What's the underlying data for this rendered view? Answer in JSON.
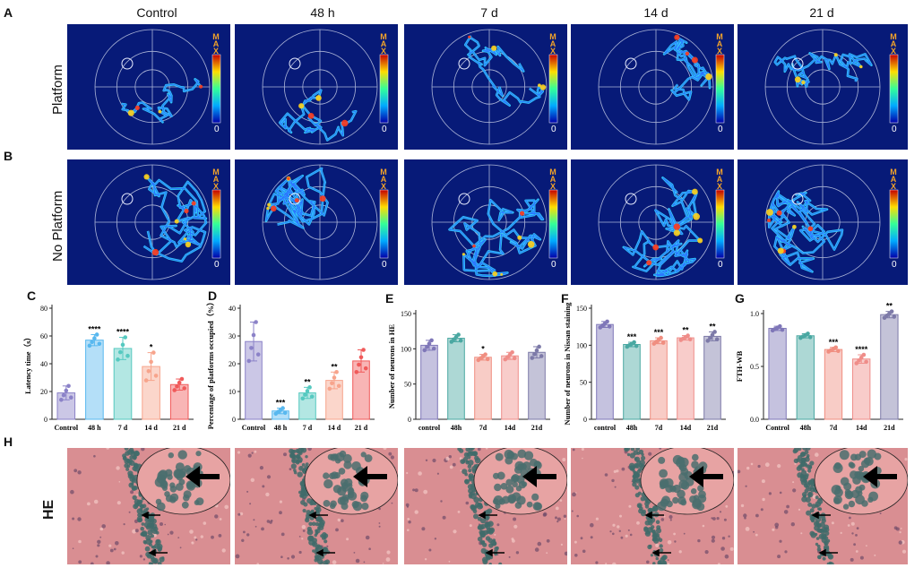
{
  "panel_letters": {
    "a": "A",
    "b": "B",
    "c": "C",
    "d": "D",
    "e": "E",
    "f": "F",
    "g": "G",
    "h": "H"
  },
  "columns": [
    "Control",
    "48 h",
    "7 d",
    "14 d",
    "21 d"
  ],
  "rows": {
    "platform": "Platform",
    "no_platform": "No Platform"
  },
  "colorbar": {
    "max": "MAX",
    "zero": "0"
  },
  "he_label": "HE",
  "colors": {
    "maze_bg": "#071a78",
    "tissue": "#d98e92",
    "cells": "#3f6b6a"
  },
  "chart_data": [
    {
      "id": "C",
      "type": "bar",
      "ylabel": "Latency time（s）",
      "ylim": [
        0,
        80
      ],
      "yticks": [
        0,
        20,
        40,
        60,
        80
      ],
      "categories": [
        "Control",
        "48 h",
        "7 d",
        "14 d",
        "21 d"
      ],
      "values": [
        19,
        57,
        51,
        38,
        25
      ],
      "errors": [
        5,
        4,
        8,
        10,
        4
      ],
      "significance": [
        "",
        "****",
        "****",
        "*",
        ""
      ],
      "colors": [
        "#8b82c8",
        "#58b8ef",
        "#56c9c0",
        "#f7a48c",
        "#f05a5a"
      ]
    },
    {
      "id": "D",
      "type": "bar",
      "ylabel": "Percentage of platforms occupied（%）",
      "ylim": [
        0,
        40
      ],
      "yticks": [
        0,
        10,
        20,
        30,
        40
      ],
      "categories": [
        "Control",
        "48 h",
        "7 d",
        "14 d",
        "21 d"
      ],
      "values": [
        28,
        3,
        9.5,
        14,
        21
      ],
      "errors": [
        7,
        1,
        2,
        3,
        4
      ],
      "significance": [
        "",
        "***",
        "**",
        "**",
        ""
      ],
      "colors": [
        "#8b82c8",
        "#58b8ef",
        "#56c9c0",
        "#f7a48c",
        "#f05a5a"
      ]
    },
    {
      "id": "E",
      "type": "bar",
      "ylabel": "Number of neurons in HE",
      "ylim": [
        0,
        150
      ],
      "yticks": [
        0,
        50,
        100,
        150
      ],
      "categories": [
        "control",
        "48h",
        "7d",
        "14d",
        "21d"
      ],
      "values": [
        105,
        115,
        88,
        90,
        95
      ],
      "errors": [
        7,
        5,
        4,
        5,
        8
      ],
      "significance": [
        "",
        "",
        "*",
        "",
        ""
      ],
      "colors": [
        "#7f77b8",
        "#4aa8a2",
        "#f08e80",
        "#ef8d89",
        "#7d7aa8"
      ]
    },
    {
      "id": "F",
      "type": "bar",
      "ylabel": "Number of neurons in Nissan staining",
      "ylim": [
        0,
        150
      ],
      "yticks": [
        0,
        50,
        100,
        150
      ],
      "categories": [
        "control",
        "48h",
        "7d",
        "14d",
        "21d"
      ],
      "values": [
        128,
        101,
        106,
        110,
        112
      ],
      "errors": [
        4,
        3,
        4,
        3,
        6
      ],
      "significance": [
        "",
        "***",
        "***",
        "**",
        "**"
      ],
      "colors": [
        "#7f77b8",
        "#4aa8a2",
        "#f08e80",
        "#ef8d89",
        "#7d7aa8"
      ]
    },
    {
      "id": "G",
      "type": "bar",
      "ylabel": "FTH-WB",
      "ylim": [
        0,
        1.0
      ],
      "yticks": [
        0.0,
        0.5,
        1.0
      ],
      "categories": [
        "Control",
        "48h",
        "7d",
        "14d",
        "21d"
      ],
      "values": [
        0.86,
        0.79,
        0.66,
        0.57,
        0.99
      ],
      "errors": [
        0.02,
        0.02,
        0.02,
        0.04,
        0.03
      ],
      "significance": [
        "",
        "",
        "***",
        "****",
        "**"
      ],
      "colors": [
        "#7f77b8",
        "#4aa8a2",
        "#f08e80",
        "#ef8d89",
        "#7d7aa8"
      ]
    }
  ]
}
